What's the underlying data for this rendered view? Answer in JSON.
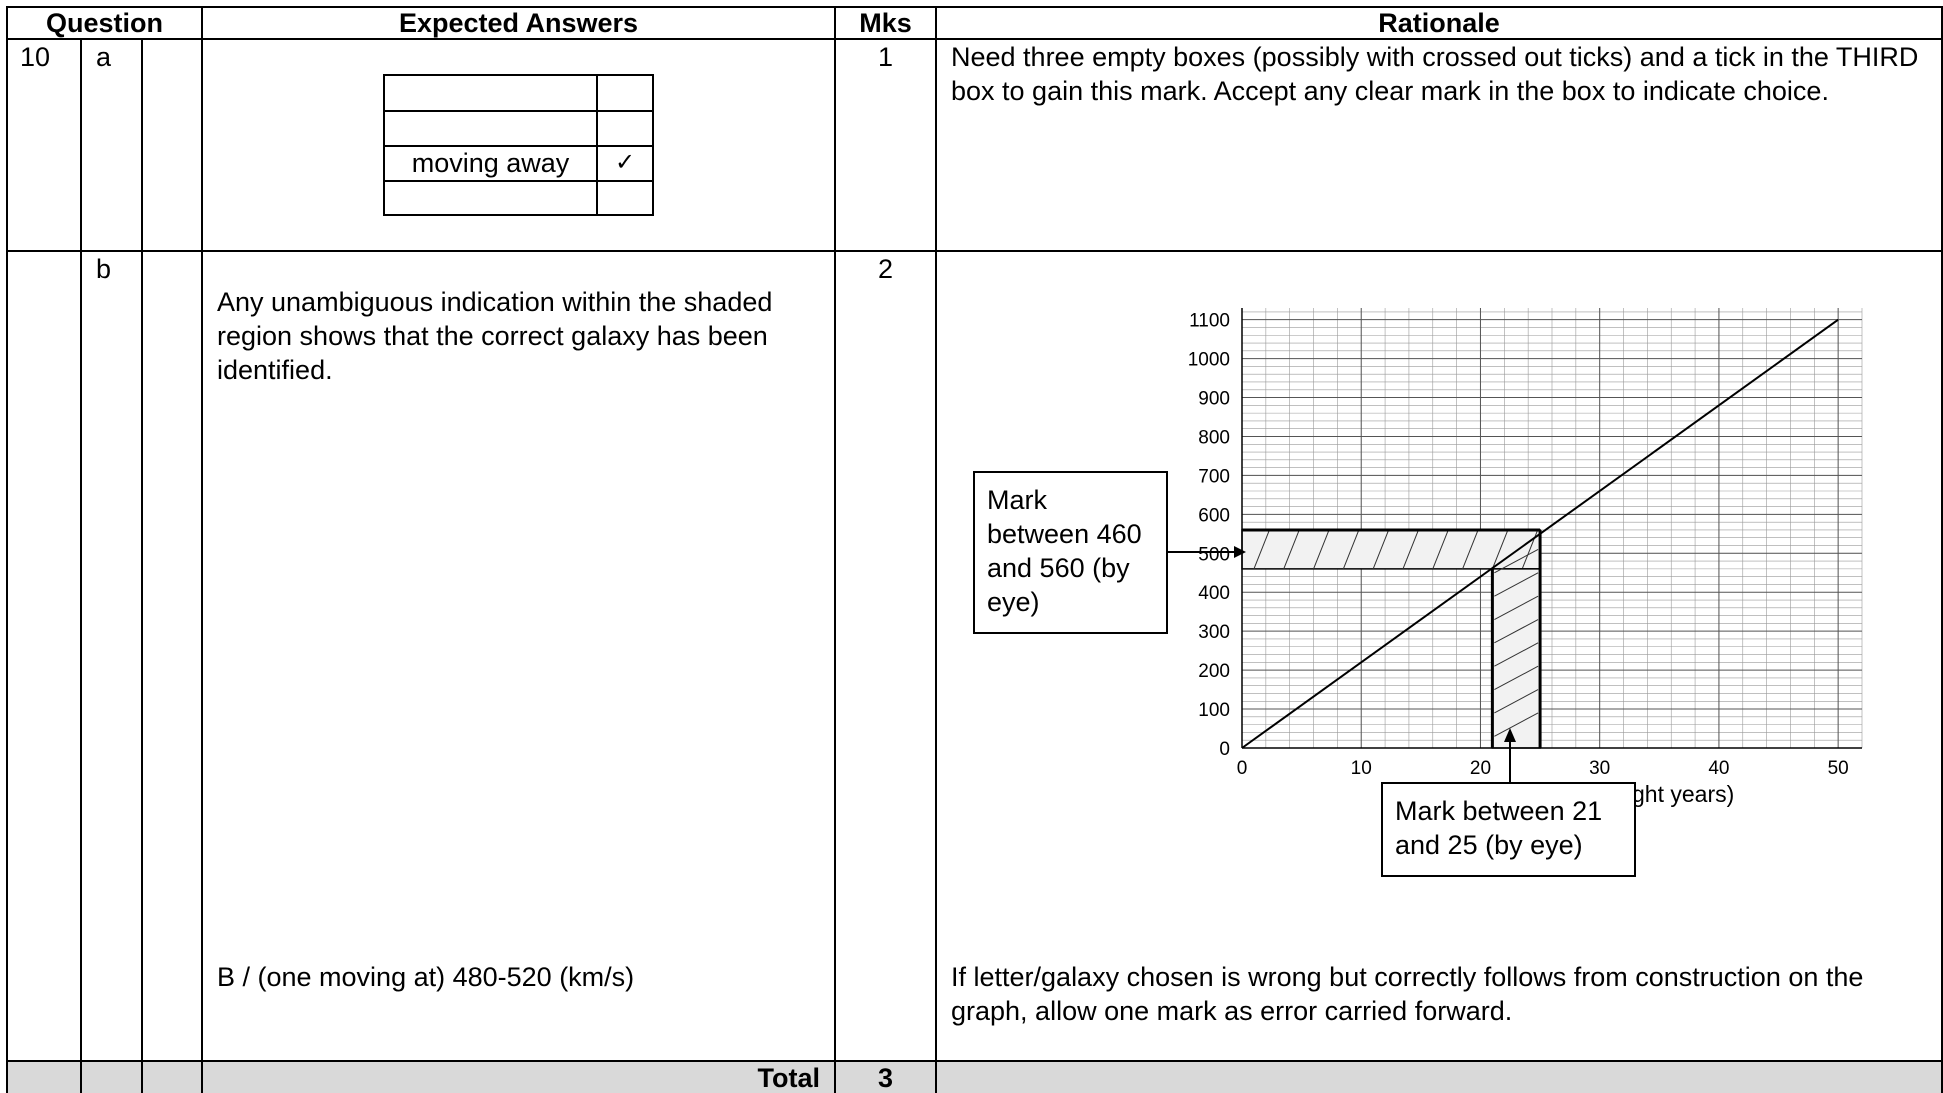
{
  "headers": {
    "question": "Question",
    "expected": "Expected Answers",
    "marks": "Mks",
    "rationale": "Rationale"
  },
  "row_a": {
    "number": "10",
    "part": "a",
    "marks": "1",
    "rationale": "Need three empty boxes (possibly with crossed out ticks) and a tick in the THIRD box to gain this mark. Accept any clear mark in the box to indicate choice.",
    "choice_table": {
      "rows": [
        "",
        "",
        "moving away",
        ""
      ],
      "tick_symbol": "✓",
      "ticked_row": 2
    }
  },
  "row_b": {
    "part": "b",
    "marks": "2",
    "answer_1": "Any unambiguous indication within the shaded region shows that the correct galaxy has been identified.",
    "answer_2": "B / (one moving at) 480-520 (km/s)",
    "rationale": "If letter/galaxy chosen is wrong but correctly follows from construction on the graph, allow one mark as error carried forward.",
    "note_y": "Mark between 460 and 560 (by eye)",
    "note_x": "Mark between 21 and 25 (by eye)",
    "axis_label_fragment_left": "(",
    "axis_label_fragment_right": "ght years)"
  },
  "total": {
    "label": "Total",
    "marks": "3"
  },
  "chart_data": {
    "type": "line",
    "x": [
      0,
      50
    ],
    "y": [
      0,
      1100
    ],
    "xlim": [
      0,
      52
    ],
    "ylim": [
      0,
      1130
    ],
    "x_ticks": [
      "0",
      "10",
      "20",
      "30",
      "40",
      "50"
    ],
    "y_ticks": [
      "0",
      "100",
      "200",
      "300",
      "400",
      "500",
      "600",
      "700",
      "800",
      "900",
      "1000",
      "1100"
    ],
    "shaded_y_band": [
      460,
      560
    ],
    "shaded_x_band": [
      21,
      25
    ],
    "grid": true
  }
}
